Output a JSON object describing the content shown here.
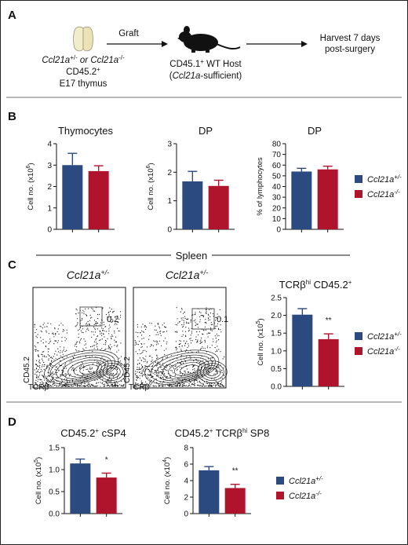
{
  "colors": {
    "wt": "#2b4a80",
    "ko": "#b0142c",
    "axis": "#111111",
    "flow": "#111111"
  },
  "panel_labels": {
    "a": "A",
    "b": "B",
    "c": "C",
    "d": "D"
  },
  "panelA": {
    "donor_line1_pre": "Ccl21a",
    "donor_line1_sup1": "+/-",
    "donor_line1_mid": " or ",
    "donor_line1_gene2": "Ccl21a",
    "donor_line1_sup2": "-/-",
    "donor_line2": "CD45.2",
    "donor_line2_sup": "+",
    "donor_line3": "E17 thymus",
    "arrow1_label": "Graft",
    "host_line1_pre": "CD45.1",
    "host_line1_sup": "+",
    "host_line1_post": " WT Host",
    "host_line2_open": "(",
    "host_line2_gene": "Ccl21a",
    "host_line2_post": "-sufficient)",
    "harvest_line1": "Harvest 7 days",
    "harvest_line2": "post-surgery"
  },
  "legend": {
    "wt_gene": "Ccl21a",
    "wt_sup": "+/-",
    "ko_gene": "Ccl21a",
    "ko_sup": "-/-"
  },
  "panelC": {
    "spleen_label": "Spleen",
    "flow1": {
      "title_gene": "Ccl21a",
      "title_sup": "+/-",
      "gate_value": "0.2",
      "ylabel": "CD45.2",
      "xlabel": "TCRβ"
    },
    "flow2": {
      "title_gene": "Ccl21a",
      "title_sup": "+/-",
      "gate_value": "0.1",
      "ylabel": "CD45.2",
      "xlabel": "TCRβ"
    }
  },
  "chart_data": [
    {
      "id": "B1",
      "type": "bar",
      "title": "Thymocytes",
      "ylabel_main": "Cell no. (x10",
      "ylabel_sup": "6",
      "ylabel_end": ")",
      "ylim": [
        0,
        4
      ],
      "yticks": [
        "0",
        "1",
        "2",
        "3",
        "4"
      ],
      "ytick_values": [
        0,
        1,
        2,
        3,
        4
      ],
      "series": [
        {
          "name": "Ccl21a+/-",
          "value": 3.0,
          "error": 0.55
        },
        {
          "name": "Ccl21a-/-",
          "value": 2.72,
          "error": 0.25
        }
      ],
      "significance": ""
    },
    {
      "id": "B2",
      "type": "bar",
      "title": "DP",
      "ylabel_main": "Cell no. (x10",
      "ylabel_sup": "6",
      "ylabel_end": ")",
      "ylim": [
        0,
        3
      ],
      "yticks": [
        "0",
        "1",
        "2",
        "3"
      ],
      "ytick_values": [
        0,
        1,
        2,
        3
      ],
      "series": [
        {
          "name": "Ccl21a+/-",
          "value": 1.68,
          "error": 0.35
        },
        {
          "name": "Ccl21a-/-",
          "value": 1.52,
          "error": 0.2
        }
      ],
      "significance": ""
    },
    {
      "id": "B3",
      "type": "bar",
      "title": "DP",
      "ylabel_main": "% of lymphocytes",
      "ylabel_sup": "",
      "ylabel_end": "",
      "ylim": [
        0,
        80
      ],
      "yticks": [
        "0",
        "10",
        "20",
        "30",
        "40",
        "50",
        "60",
        "70",
        "80"
      ],
      "ytick_values": [
        0,
        10,
        20,
        30,
        40,
        50,
        60,
        70,
        80
      ],
      "series": [
        {
          "name": "Ccl21a+/-",
          "value": 54,
          "error": 3
        },
        {
          "name": "Ccl21a-/-",
          "value": 56,
          "error": 3
        }
      ],
      "significance": ""
    },
    {
      "id": "C",
      "type": "bar",
      "title_main": "TCRβ",
      "title_sup": "hi",
      "title_end": " CD45.2",
      "title_sup2": "+",
      "ylabel_main": "Cell no. (x10",
      "ylabel_sup": "5",
      "ylabel_end": ")",
      "ylim": [
        0,
        2.5
      ],
      "yticks": [
        "0.0",
        "0.5",
        "1.0",
        "1.5",
        "2.0",
        "2.5"
      ],
      "ytick_values": [
        0,
        0.5,
        1.0,
        1.5,
        2.0,
        2.5
      ],
      "series": [
        {
          "name": "Ccl21a+/-",
          "value": 2.02,
          "error": 0.17
        },
        {
          "name": "Ccl21a-/-",
          "value": 1.33,
          "error": 0.15
        }
      ],
      "significance": "**"
    },
    {
      "id": "D1",
      "type": "bar",
      "title_main": "CD45.2",
      "title_sup": "+",
      "title_end": " cSP4",
      "title_sup2": "",
      "ylabel_main": "Cell no. (x10",
      "ylabel_sup": "5",
      "ylabel_end": ")",
      "ylim": [
        0,
        1.5
      ],
      "yticks": [
        "0.0",
        "0.5",
        "1.0",
        "1.5"
      ],
      "ytick_values": [
        0,
        0.5,
        1.0,
        1.5
      ],
      "series": [
        {
          "name": "Ccl21a+/-",
          "value": 1.14,
          "error": 0.1
        },
        {
          "name": "Ccl21a-/-",
          "value": 0.82,
          "error": 0.1
        }
      ],
      "significance": "*"
    },
    {
      "id": "D2",
      "type": "bar",
      "title_main": "CD45.2",
      "title_sup": "+",
      "title_end": " TCRβ",
      "title_sup2": "hi",
      "title_tail": " SP8",
      "ylabel_main": "Cell no. (x10",
      "ylabel_sup": "4",
      "ylabel_end": ")",
      "ylim": [
        0,
        8
      ],
      "yticks": [
        "0",
        "2",
        "4",
        "6",
        "8"
      ],
      "ytick_values": [
        0,
        2,
        4,
        6,
        8
      ],
      "series": [
        {
          "name": "Ccl21a+/-",
          "value": 5.25,
          "error": 0.45
        },
        {
          "name": "Ccl21a-/-",
          "value": 3.1,
          "error": 0.45
        }
      ],
      "significance": "**"
    }
  ]
}
